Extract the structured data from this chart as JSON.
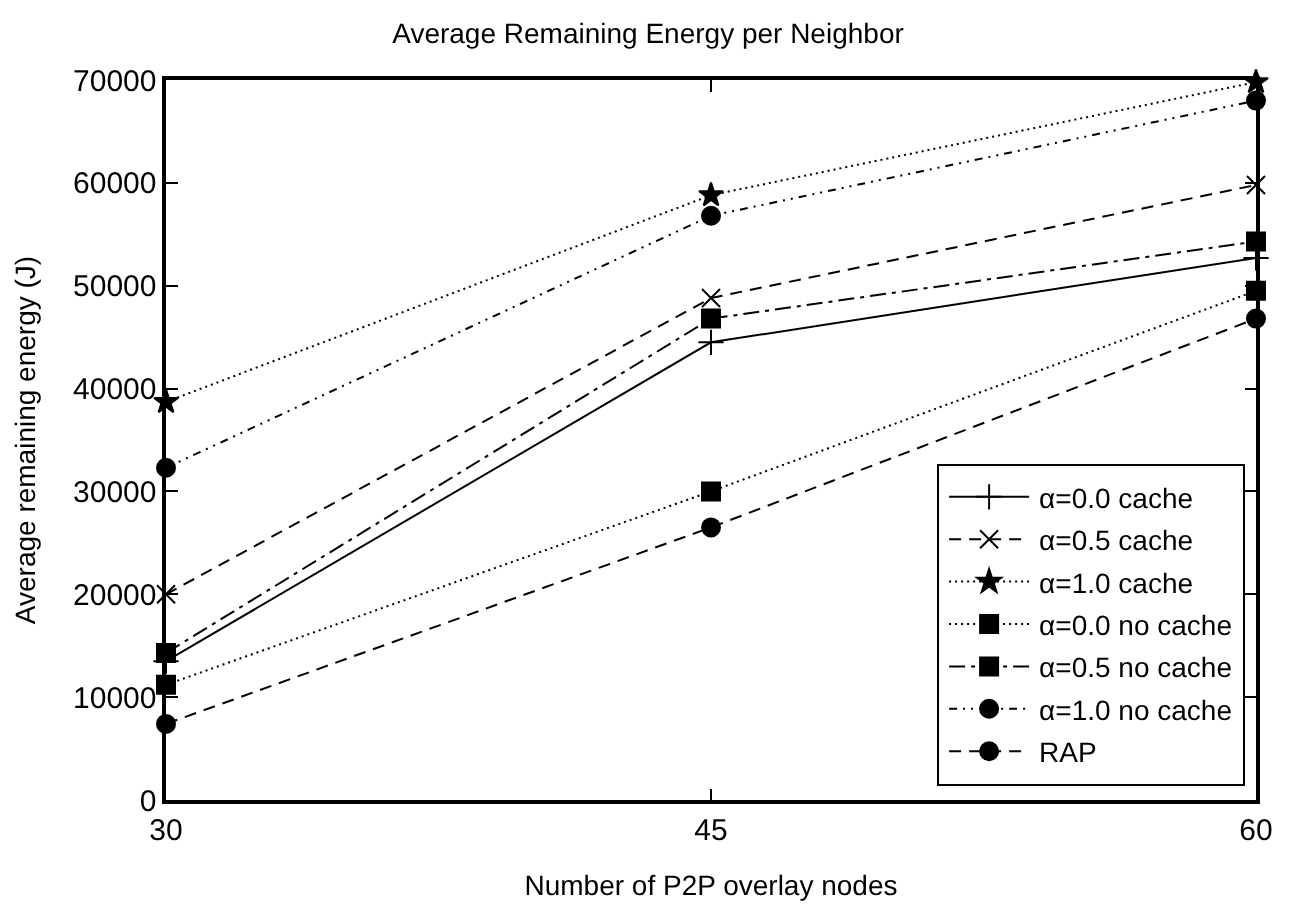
{
  "chart_data": {
    "type": "line",
    "title": "Average Remaining Energy per Neighbor",
    "xlabel": "Number of P2P overlay nodes",
    "ylabel": "Average remaining energy (J)",
    "x": [
      30,
      45,
      60
    ],
    "xlim": [
      30,
      60
    ],
    "xticks": [
      30,
      45,
      60
    ],
    "ylim": [
      0,
      70000
    ],
    "yticks": [
      0,
      10000,
      20000,
      30000,
      40000,
      50000,
      60000,
      70000
    ],
    "legend": "bottom right",
    "series": [
      {
        "name": "α=0.0 cache",
        "color": "#000000",
        "values": [
          13500,
          44500,
          52700
        ],
        "marker": "cross",
        "line_style": "solid"
      },
      {
        "name": "α=0.5 cache",
        "color": "#000000",
        "values": [
          20000,
          48800,
          59800
        ],
        "marker": "x",
        "line_style": "dashed"
      },
      {
        "name": "α=1.0 cache",
        "color": "#000000",
        "values": [
          38700,
          58800,
          69800
        ],
        "marker": "star",
        "line_style": "dotted"
      },
      {
        "name": "α=0.0 no cache",
        "color": "#000000",
        "values": [
          11200,
          30000,
          49500
        ],
        "marker": "square",
        "line_style": "dotted"
      },
      {
        "name": "α=0.5 no cache",
        "color": "#000000",
        "values": [
          14300,
          46800,
          54300
        ],
        "marker": "square",
        "line_style": "dashdot"
      },
      {
        "name": "α=1.0 no cache",
        "color": "#000000",
        "values": [
          32300,
          56800,
          68000
        ],
        "marker": "circle",
        "line_style": "dashdotdot"
      },
      {
        "name": "RAP",
        "color": "#000000",
        "values": [
          7400,
          26500,
          46800
        ],
        "marker": "circle",
        "line_style": "dashed"
      }
    ]
  }
}
